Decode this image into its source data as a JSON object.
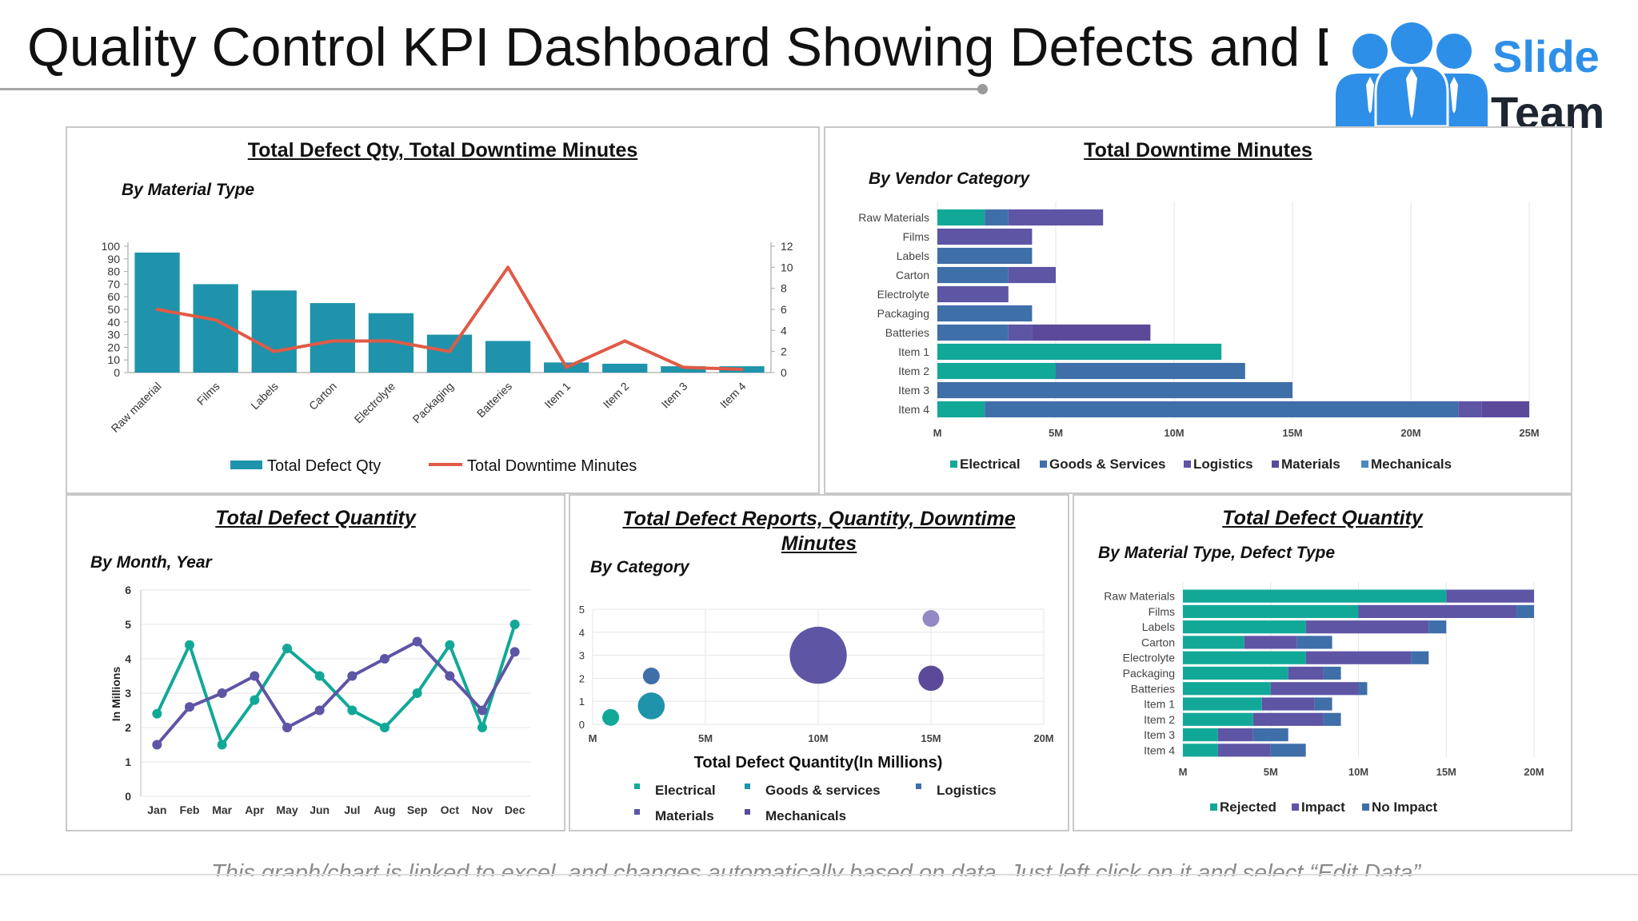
{
  "page": {
    "title": "Quality Control KPI Dashboard Showing Defects and Downtime",
    "footer_note": "This graph/chart is linked to excel, and changes automatically based on data. Just left click on it and select “Edit Data”.",
    "logo_top": "Slide",
    "logo_bottom": "Team"
  },
  "colors": {
    "teal": "#1f93ab",
    "red": "#e05a45",
    "green": "#12a898",
    "blue": "#3f6fa8",
    "purple": "#5e55a5",
    "indigo": "#5b4a9a",
    "lightblue": "#4f87c0",
    "lavender": "#9489c4",
    "grid": "#e6e6e6",
    "logo_blue": "#2e8fe8",
    "logo_dark": "#1c2530"
  },
  "chart_data": [
    {
      "id": "chart1",
      "type": "bar",
      "title": "Total Defect Qty, Total Downtime Minutes",
      "subtitle": "By Material Type",
      "categories": [
        "Raw material",
        "Films",
        "Labels",
        "Carton",
        "Electrolyte",
        "Packaging",
        "Batteries",
        "Item 1",
        "Item 2",
        "Item 3",
        "Item 4"
      ],
      "series": [
        {
          "name": "Total Defect Qty",
          "type": "bar",
          "axis": "left",
          "values": [
            95,
            70,
            65,
            55,
            47,
            30,
            25,
            8,
            7,
            5,
            5
          ]
        },
        {
          "name": "Total Downtime Minutes",
          "type": "line",
          "axis": "right",
          "values": [
            6,
            5,
            2,
            3,
            3,
            2,
            10,
            0.5,
            3,
            0.5,
            0.3
          ]
        }
      ],
      "ylim": [
        0,
        100
      ],
      "y_ticks": [
        0,
        10,
        20,
        30,
        40,
        50,
        60,
        70,
        80,
        90,
        100
      ],
      "y2lim": [
        0,
        12
      ],
      "y2_ticks": [
        0,
        2,
        4,
        6,
        8,
        10,
        12
      ],
      "legend": "bottom"
    },
    {
      "id": "chart2",
      "type": "bar",
      "orientation": "horizontal",
      "stacked": true,
      "title": "Total Downtime Minutes",
      "subtitle": "By Vendor Category",
      "categories": [
        "Raw Materials",
        "Films",
        "Labels",
        "Carton",
        "Electrolyte",
        "Packaging",
        "Batteries",
        "Item 1",
        "Item 2",
        "Item 3",
        "Item 4"
      ],
      "series": [
        {
          "name": "Electrical",
          "values": [
            2,
            0,
            0,
            0,
            0,
            0,
            0,
            12,
            5,
            0,
            2
          ]
        },
        {
          "name": "Goods & Services",
          "values": [
            1,
            0,
            4,
            3,
            0,
            4,
            3,
            0,
            8,
            15,
            20
          ]
        },
        {
          "name": "Logistics",
          "values": [
            4,
            4,
            0,
            2,
            3,
            0,
            1,
            0,
            0,
            0,
            1
          ]
        },
        {
          "name": "Materials",
          "values": [
            0,
            0,
            0,
            0,
            0,
            0,
            5,
            0,
            0,
            0,
            2
          ]
        },
        {
          "name": "Mechanicals",
          "values": [
            0,
            0,
            0,
            0,
            0,
            0,
            0,
            0,
            0,
            0,
            0
          ]
        }
      ],
      "xlim": [
        0,
        25
      ],
      "x_ticks": [
        0,
        5,
        10,
        15,
        20,
        25
      ],
      "x_tick_labels": [
        "M",
        "5M",
        "10M",
        "15M",
        "20M",
        "25M"
      ],
      "legend": "bottom"
    },
    {
      "id": "chart3",
      "type": "line",
      "title": "Total Defect Quantity",
      "subtitle": "By  Month, Year",
      "ylabel": "In Millions",
      "categories": [
        "Jan",
        "Feb",
        "Mar",
        "Apr",
        "May",
        "Jun",
        "Jul",
        "Aug",
        "Sep",
        "Oct",
        "Nov",
        "Dec"
      ],
      "series": [
        {
          "values": [
            2.4,
            4.4,
            1.5,
            2.8,
            4.3,
            3.5,
            2.5,
            2.0,
            3.0,
            4.4,
            2.0,
            5.0
          ]
        },
        {
          "values": [
            1.5,
            2.6,
            3.0,
            3.5,
            2.0,
            2.5,
            3.5,
            4.0,
            4.5,
            3.5,
            2.5,
            4.2
          ]
        }
      ],
      "ylim": [
        0,
        6
      ],
      "y_ticks": [
        0,
        1,
        2,
        3,
        4,
        5,
        6
      ]
    },
    {
      "id": "chart4",
      "type": "scatter",
      "title": "Total Defect Reports, Quantity, Downtime Minutes",
      "subtitle": "By Category",
      "xlabel": "Total Defect Quantity(In Millions)",
      "xlim": [
        0,
        20
      ],
      "x_ticks": [
        0,
        5,
        10,
        15,
        20
      ],
      "x_tick_labels": [
        "M",
        "5M",
        "10M",
        "15M",
        "20M"
      ],
      "ylim": [
        0,
        5
      ],
      "y_ticks": [
        0,
        1,
        2,
        3,
        4,
        5
      ],
      "points": [
        {
          "x": 0.8,
          "y": 0.3,
          "size": 1.0,
          "color": "green"
        },
        {
          "x": 2.6,
          "y": 2.1,
          "size": 1.0,
          "color": "blue"
        },
        {
          "x": 2.6,
          "y": 0.8,
          "size": 1.6,
          "color": "teal"
        },
        {
          "x": 10,
          "y": 3.0,
          "size": 3.4,
          "color": "purple"
        },
        {
          "x": 15,
          "y": 2.0,
          "size": 1.5,
          "color": "indigo"
        },
        {
          "x": 15,
          "y": 4.6,
          "size": 1.0,
          "color": "lavender"
        }
      ],
      "legend_items": [
        {
          "name": "Electrical",
          "color": "green"
        },
        {
          "name": "Goods & services",
          "color": "teal"
        },
        {
          "name": "Logistics",
          "color": "blue"
        },
        {
          "name": "Materials",
          "color": "purple"
        },
        {
          "name": "Mechanicals",
          "color": "indigo"
        }
      ]
    },
    {
      "id": "chart5",
      "type": "bar",
      "orientation": "horizontal",
      "stacked": true,
      "title": "Total Defect Quantity",
      "subtitle": "By Material Type, Defect Type",
      "categories": [
        "Raw Materials",
        "Films",
        "Labels",
        "Carton",
        "Electrolyte",
        "Packaging",
        "Batteries",
        "Item 1",
        "Item 2",
        "Item 3",
        "Item 4"
      ],
      "series": [
        {
          "name": "Rejected",
          "values": [
            15,
            10,
            7,
            3.5,
            7,
            6,
            5,
            4.5,
            4,
            2,
            2
          ]
        },
        {
          "name": "Impact",
          "values": [
            5,
            9,
            7,
            3,
            6,
            2,
            5,
            3,
            4,
            2,
            3
          ]
        },
        {
          "name": "No Impact",
          "values": [
            0,
            1,
            1,
            2,
            1,
            1,
            0.5,
            1,
            1,
            2,
            2
          ]
        }
      ],
      "xlim": [
        0,
        20
      ],
      "x_ticks": [
        0,
        5,
        10,
        15,
        20
      ],
      "x_tick_labels": [
        "M",
        "5M",
        "10M",
        "15M",
        "20M"
      ],
      "legend": "bottom"
    }
  ]
}
